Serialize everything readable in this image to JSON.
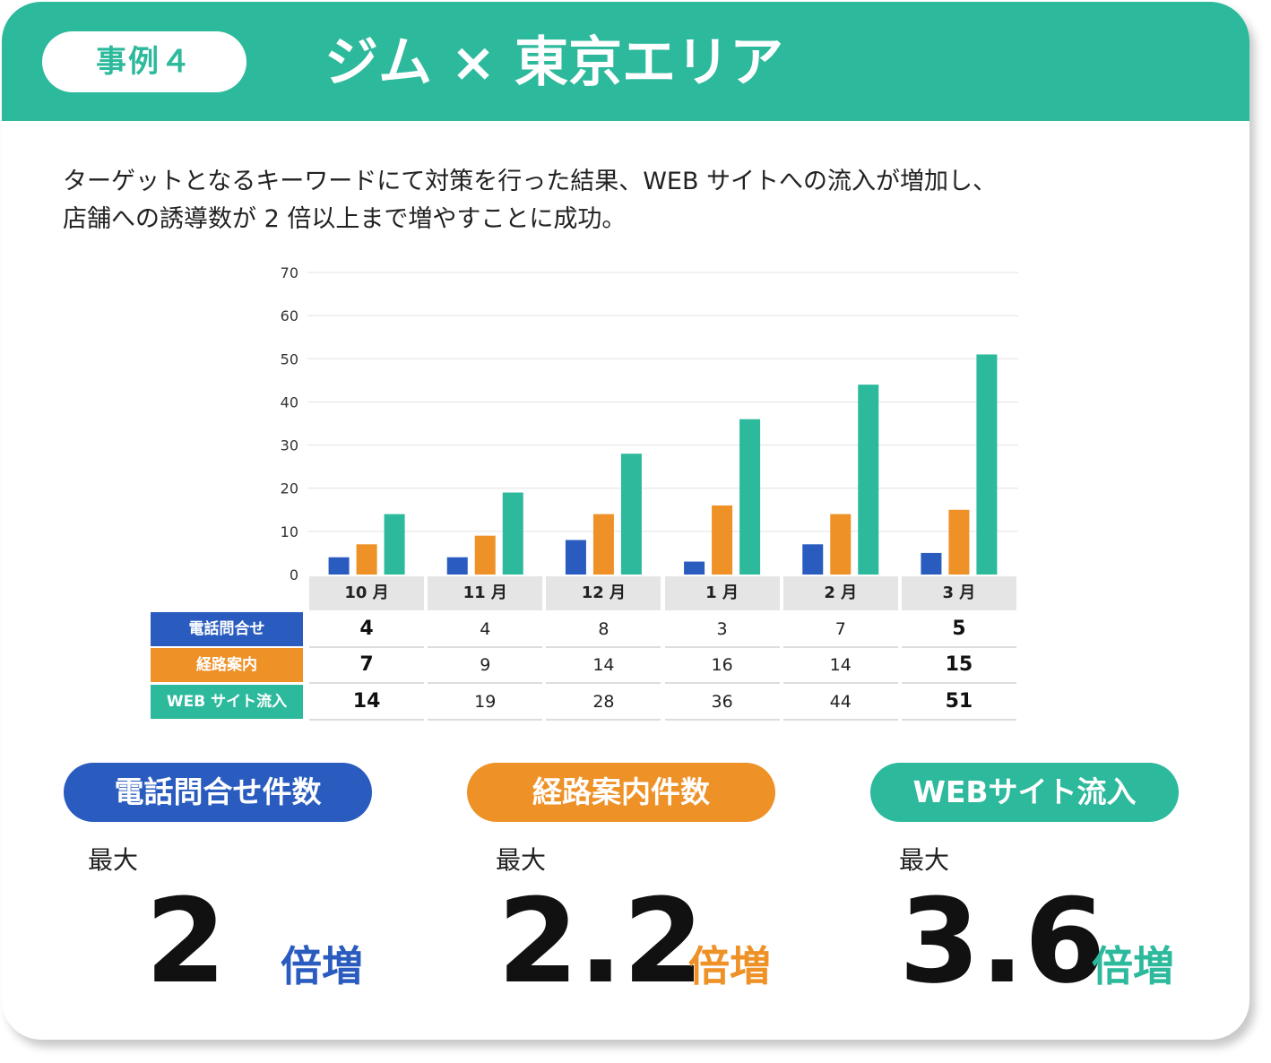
{
  "header": {
    "case_label": "事例４",
    "title": "ジム × 東京エリア"
  },
  "intro": {
    "line1": "ターゲットとなるキーワードにて対策を行った結果、WEB サイトへの流入が増加し、",
    "line2": "店舗への誘導数が 2 倍以上まで増やすことに成功。"
  },
  "colors": {
    "phone": "#2a5cbf",
    "route": "#ee9127",
    "web": "#2cb99c"
  },
  "chart_data": {
    "type": "bar",
    "categories": [
      "10 月",
      "11 月",
      "12 月",
      "1 月",
      "2 月",
      "3 月"
    ],
    "series": [
      {
        "name": "電話問合せ",
        "values": [
          4,
          4,
          8,
          3,
          7,
          5
        ]
      },
      {
        "name": "経路案内",
        "values": [
          7,
          9,
          14,
          16,
          14,
          15
        ]
      },
      {
        "name": "WEB サイト流入",
        "values": [
          14,
          19,
          28,
          36,
          44,
          51
        ]
      }
    ],
    "ylim": [
      0,
      70
    ],
    "yticks": [
      0,
      10,
      20,
      30,
      40,
      50,
      60,
      70
    ],
    "grid": true,
    "legend": "data table below chart",
    "bold_columns": [
      0,
      5
    ]
  },
  "stats": [
    {
      "label": "電話問合せ件数",
      "prefix": "最大",
      "value": "2",
      "suffix": "倍増"
    },
    {
      "label": "経路案内件数",
      "prefix": "最大",
      "value": "2.2",
      "suffix": "倍増"
    },
    {
      "label": "WEBサイト流入",
      "prefix": "最大",
      "value": "3.6",
      "suffix": "倍増"
    }
  ]
}
